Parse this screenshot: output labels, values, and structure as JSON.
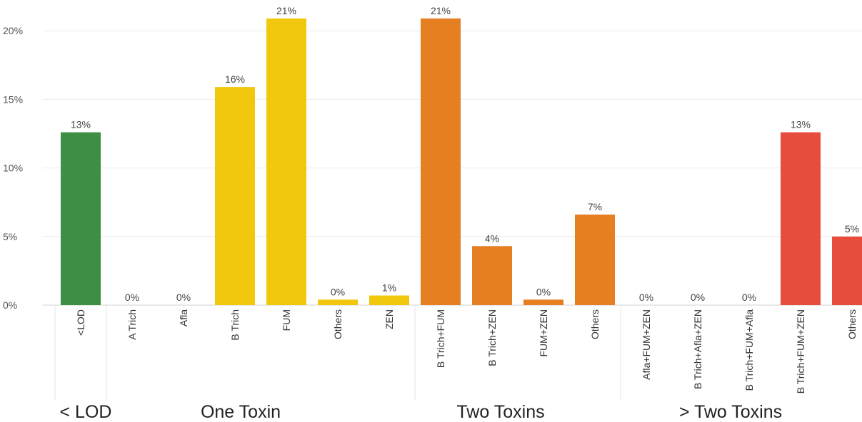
{
  "chart_data": {
    "type": "bar",
    "ylim": [
      0,
      22
    ],
    "yticks": [
      {
        "value": 0,
        "label": "0%"
      },
      {
        "value": 5,
        "label": "5%"
      },
      {
        "value": 10,
        "label": "10%"
      },
      {
        "value": 15,
        "label": "15%"
      },
      {
        "value": 20,
        "label": "20%"
      }
    ],
    "grid": true,
    "colors": {
      "< LOD": "#3d8f45",
      "One Toxin": "#f2c80f",
      "Two Toxins": "#e67e22",
      "> Two Toxins": "#e74c3c"
    },
    "groups": [
      {
        "label": "< LOD",
        "color": "#3d8f45",
        "categories": [
          {
            "name": "<LOD",
            "value": 12.6,
            "label": "13%"
          }
        ]
      },
      {
        "label": "One Toxin",
        "color": "#f2c80f",
        "categories": [
          {
            "name": "A Trich",
            "value": 0,
            "label": "0%"
          },
          {
            "name": "Afla",
            "value": 0,
            "label": "0%"
          },
          {
            "name": "B Trich",
            "value": 15.9,
            "label": "16%"
          },
          {
            "name": "FUM",
            "value": 20.9,
            "label": "21%"
          },
          {
            "name": "Others",
            "value": 0.4,
            "label": "0%"
          },
          {
            "name": "ZEN",
            "value": 0.7,
            "label": "1%"
          }
        ]
      },
      {
        "label": "Two Toxins",
        "color": "#e67e22",
        "categories": [
          {
            "name": "B Trich+FUM",
            "value": 20.9,
            "label": "21%"
          },
          {
            "name": "B Trich+ZEN",
            "value": 4.3,
            "label": "4%"
          },
          {
            "name": "FUM+ZEN",
            "value": 0.4,
            "label": "0%"
          },
          {
            "name": "Others",
            "value": 6.6,
            "label": "7%"
          }
        ]
      },
      {
        "label": "> Two Toxins",
        "color": "#e74c3c",
        "categories": [
          {
            "name": "Afla+FUM+ZEN",
            "value": 0,
            "label": "0%"
          },
          {
            "name": "B Trich+Afla+ZEN",
            "value": 0,
            "label": "0%"
          },
          {
            "name": "B Trich+FUM+Afla",
            "value": 0,
            "label": "0%"
          },
          {
            "name": "B Trich+FUM+ZEN",
            "value": 12.6,
            "label": "13%"
          },
          {
            "name": "Others",
            "value": 5.0,
            "label": "5%"
          }
        ]
      }
    ]
  }
}
